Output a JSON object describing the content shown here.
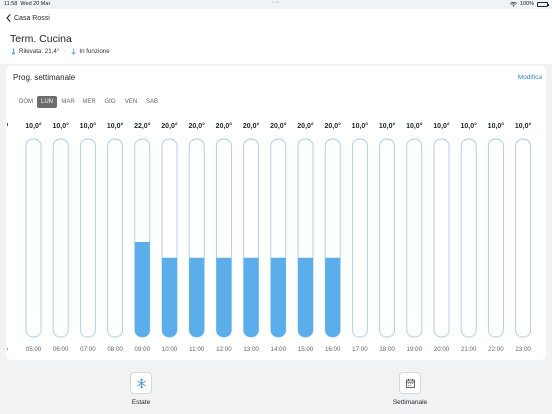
{
  "status_bar": {
    "time": "11:58",
    "date": "Wed 20 Mar",
    "battery": "100%"
  },
  "header": {
    "back_label": "Casa Rossi",
    "title": "Term. Cucina",
    "detected_label": "Rilevata: 21,4°",
    "state_label": "In funzione"
  },
  "schedule": {
    "title": "Prog. settimanale",
    "edit_label": "Modifica",
    "days": [
      "DOM",
      "LUN",
      "MAR",
      "MER",
      "GIO",
      "VEN",
      "SAB"
    ],
    "selected_day": "LUN"
  },
  "chart_data": {
    "type": "bar",
    "categories": [
      "05:00",
      "06:00",
      "07:00",
      "08:00",
      "09:00",
      "10:00",
      "11:00",
      "12:00",
      "13:00",
      "14:00",
      "15:00",
      "16:00",
      "17:00",
      "18:00",
      "19:00",
      "20:00",
      "21:00",
      "22:00",
      "23:00"
    ],
    "values": [
      10.0,
      10.0,
      10.0,
      10.0,
      22.0,
      20.0,
      20.0,
      20.0,
      20.0,
      20.0,
      20.0,
      20.0,
      10.0,
      10.0,
      10.0,
      10.0,
      10.0,
      10.0,
      10.0
    ],
    "value_labels": [
      "10,0°",
      "10,0°",
      "10,0°",
      "10,0°",
      "22,0°",
      "20,0°",
      "20,0°",
      "20,0°",
      "20,0°",
      "20,0°",
      "20,0°",
      "20,0°",
      "10,0°",
      "10,0°",
      "10,0°",
      "10,0°",
      "10,0°",
      "10,0°",
      "10,0°"
    ],
    "ylim": [
      10,
      35
    ],
    "fill_color": "#5aaeec",
    "track_color": "#a9cbeb"
  },
  "bottom_bar": {
    "modes": [
      {
        "label": "Estate",
        "icon": "snowflake-icon"
      },
      {
        "label": "Settimanale",
        "icon": "calendar-icon"
      }
    ]
  }
}
